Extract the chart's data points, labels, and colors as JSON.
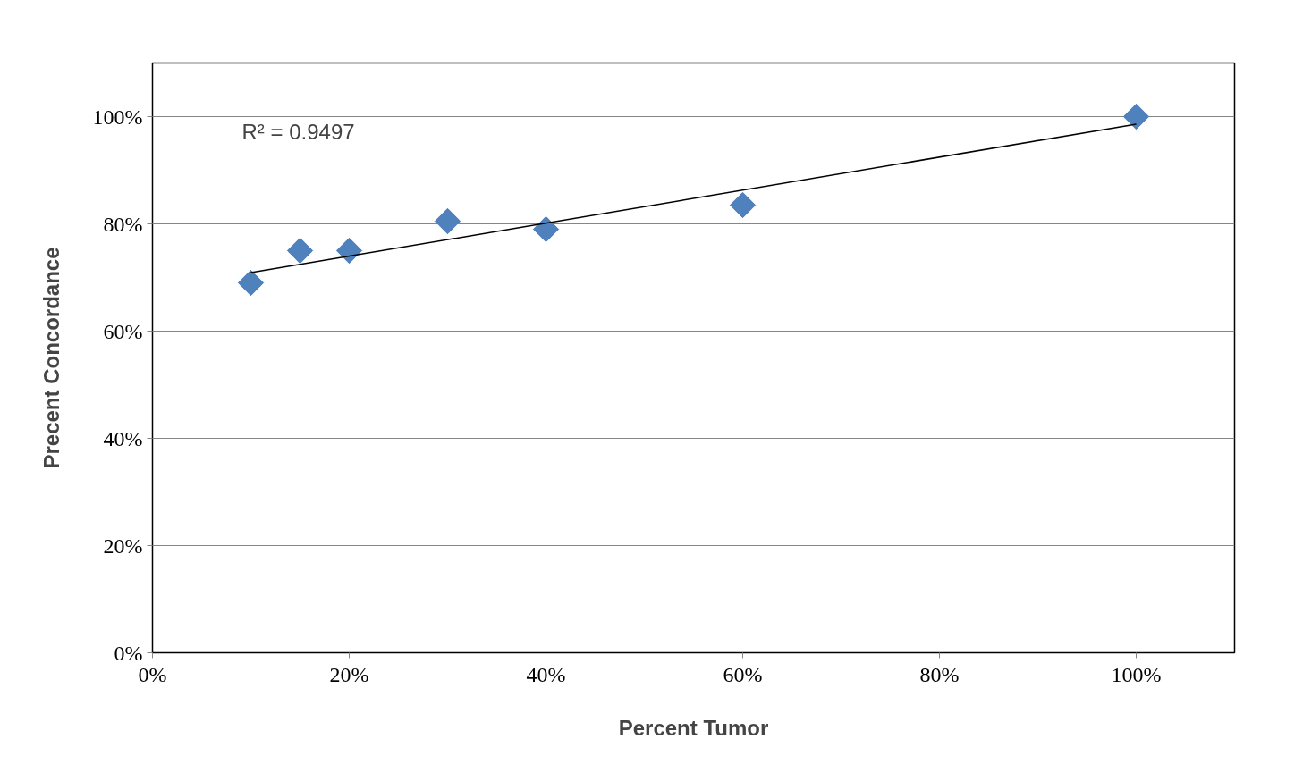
{
  "chart_data": {
    "type": "scatter",
    "xlabel": "Percent Tumor",
    "ylabel": "Precent Concordance",
    "x": [
      10,
      15,
      20,
      30,
      40,
      60,
      100
    ],
    "series": [
      {
        "color": "#4f81bd",
        "marker": "diamond",
        "values": [
          69,
          75,
          75,
          80.5,
          79,
          83.5,
          100
        ]
      },
      {
        "type": "line",
        "color": "#000000",
        "x": [
          10,
          100
        ],
        "values": [
          70.9,
          98.6
        ]
      }
    ],
    "annotations": [
      "R² = 0.9497"
    ],
    "xlim": [
      0,
      110
    ],
    "ylim": [
      0,
      110
    ],
    "xticks": [
      {
        "value": 0,
        "label": "0%"
      },
      {
        "value": 20,
        "label": "20%"
      },
      {
        "value": 40,
        "label": "40%"
      },
      {
        "value": 60,
        "label": "60%"
      },
      {
        "value": 80,
        "label": "80%"
      },
      {
        "value": 100,
        "label": "100%"
      }
    ],
    "yticks": [
      {
        "value": 0,
        "label": "0%"
      },
      {
        "value": 20,
        "label": "20%"
      },
      {
        "value": 40,
        "label": "40%"
      },
      {
        "value": 60,
        "label": "60%"
      },
      {
        "value": 80,
        "label": "80%"
      },
      {
        "value": 100,
        "label": "100%"
      }
    ],
    "grid": "y"
  }
}
